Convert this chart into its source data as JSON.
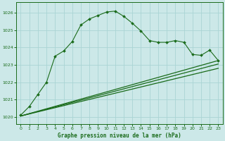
{
  "title": "Graphe pression niveau de la mer (hPa)",
  "background_color": "#cce8e8",
  "grid_color": "#aad4d4",
  "line_color": "#1a6b1a",
  "ylabel_ticks": [
    1020,
    1021,
    1022,
    1023,
    1024,
    1025,
    1026
  ],
  "xlim": [
    -0.5,
    23.5
  ],
  "ylim": [
    1019.6,
    1026.6
  ],
  "series1": {
    "x": [
      0,
      1,
      2,
      3,
      4,
      5,
      6,
      7,
      8,
      9,
      10,
      11,
      12,
      13,
      14,
      15,
      16,
      17,
      18,
      19,
      20,
      21,
      22,
      23
    ],
    "y": [
      1020.1,
      1020.6,
      1021.3,
      1022.0,
      1023.5,
      1023.8,
      1024.35,
      1025.3,
      1025.65,
      1025.85,
      1026.05,
      1026.1,
      1025.8,
      1025.4,
      1024.95,
      1024.4,
      1024.3,
      1024.3,
      1024.4,
      1024.3,
      1023.6,
      1023.55,
      1023.85,
      1023.25
    ]
  },
  "series2": {
    "x": [
      0,
      23
    ],
    "y": [
      1020.05,
      1023.25
    ]
  },
  "series3": {
    "x": [
      0,
      23
    ],
    "y": [
      1020.05,
      1023.05
    ]
  },
  "series4": {
    "x": [
      0,
      23
    ],
    "y": [
      1020.05,
      1022.8
    ]
  }
}
